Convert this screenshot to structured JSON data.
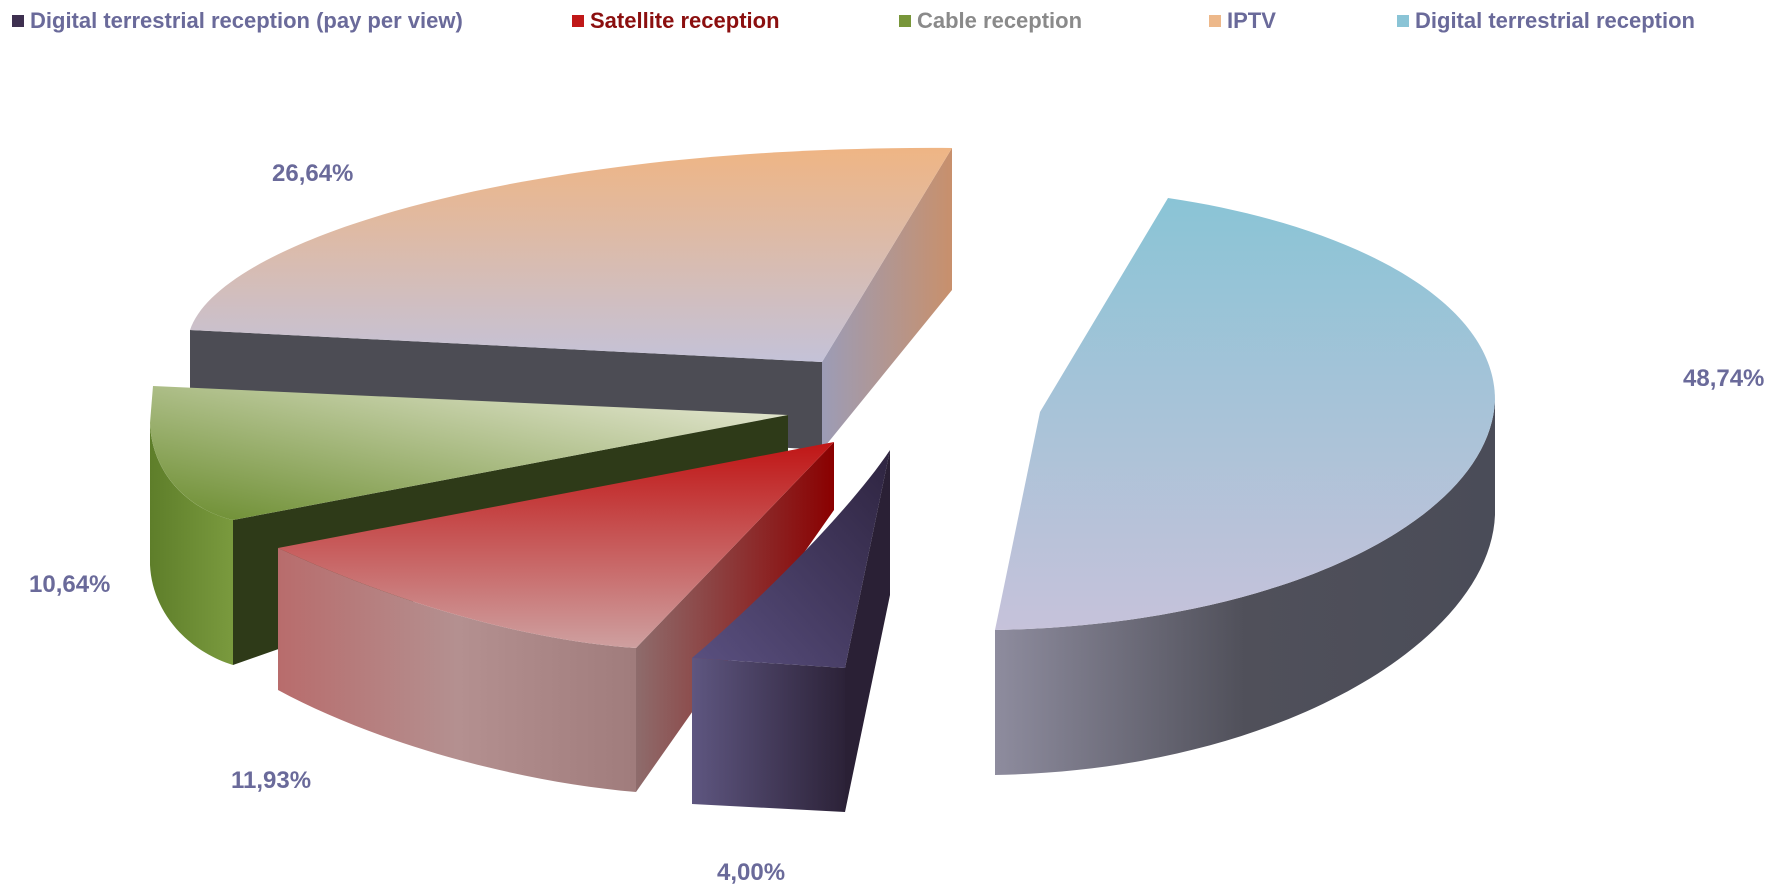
{
  "chart_data": {
    "type": "pie",
    "style": "3d-exploded",
    "legend_position": "top",
    "slices": [
      {
        "name": "Digital terrestrial reception (pay per view)",
        "value": 4.0,
        "label": "4,00%",
        "color": "#3e3050",
        "legend_text_color": "#6a6a9a"
      },
      {
        "name": "Satellite reception",
        "value": 11.93,
        "label": "11,93%",
        "color": "#c01818",
        "legend_text_color": "#8b0f0f"
      },
      {
        "name": "Cable reception",
        "value": 10.64,
        "label": "10,64%",
        "color": "#78963a",
        "legend_text_color": "#8a8a8a"
      },
      {
        "name": "IPTV",
        "value": 26.64,
        "label": "26,64%",
        "color": "#edb88a",
        "legend_text_color": "#6a6a9a"
      },
      {
        "name": "Digital terrestrial reception",
        "value": 48.74,
        "label": "48,74%",
        "color": "#8ac4d6",
        "legend_text_color": "#6a6a9a"
      }
    ]
  }
}
